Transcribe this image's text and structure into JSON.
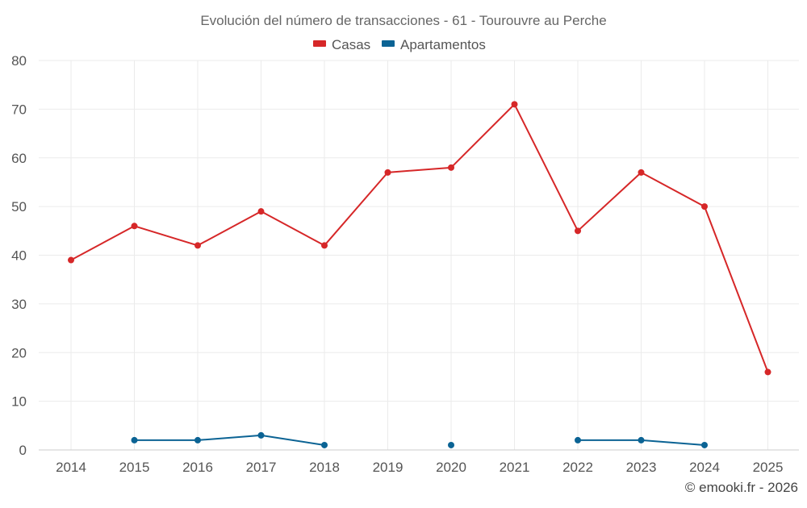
{
  "chart_data": {
    "type": "line",
    "title": "Evolución del número de transacciones - 61 - Tourouvre au Perche",
    "categories": [
      "2014",
      "2015",
      "2016",
      "2017",
      "2018",
      "2019",
      "2020",
      "2021",
      "2022",
      "2023",
      "2024",
      "2025"
    ],
    "series": [
      {
        "name": "Casas",
        "color": "#d62728",
        "values": [
          39,
          46,
          42,
          49,
          42,
          57,
          58,
          71,
          45,
          57,
          50,
          16
        ]
      },
      {
        "name": "Apartamentos",
        "color": "#0b6394",
        "values": [
          null,
          2,
          2,
          3,
          1,
          null,
          1,
          null,
          2,
          2,
          1,
          null
        ]
      }
    ],
    "ylim": [
      0,
      80
    ],
    "yticks": [
      0,
      10,
      20,
      30,
      40,
      50,
      60,
      70,
      80
    ],
    "xlabel": "",
    "ylabel": "",
    "grid": true,
    "legend_position": "top-center"
  },
  "footer": {
    "credit": "© emooki.fr - 2026"
  }
}
